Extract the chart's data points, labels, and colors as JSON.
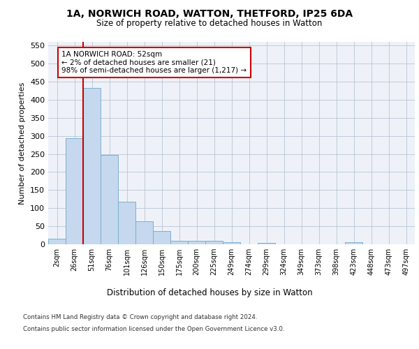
{
  "title_line1": "1A, NORWICH ROAD, WATTON, THETFORD, IP25 6DA",
  "title_line2": "Size of property relative to detached houses in Watton",
  "xlabel": "Distribution of detached houses by size in Watton",
  "ylabel": "Number of detached properties",
  "categories": [
    "2sqm",
    "26sqm",
    "51sqm",
    "76sqm",
    "101sqm",
    "126sqm",
    "150sqm",
    "175sqm",
    "200sqm",
    "225sqm",
    "249sqm",
    "274sqm",
    "299sqm",
    "324sqm",
    "349sqm",
    "373sqm",
    "398sqm",
    "423sqm",
    "448sqm",
    "473sqm",
    "497sqm"
  ],
  "values": [
    15,
    293,
    432,
    247,
    118,
    64,
    36,
    9,
    10,
    10,
    5,
    0,
    4,
    0,
    0,
    0,
    0,
    5,
    0,
    0,
    0
  ],
  "bar_color": "#c5d8ed",
  "bar_edge_color": "#7bafd4",
  "vline_x_index": 1,
  "vline_color": "#cc0000",
  "annotation_text": "1A NORWICH ROAD: 52sqm\n← 2% of detached houses are smaller (21)\n98% of semi-detached houses are larger (1,217) →",
  "annotation_box_color": "#ffffff",
  "annotation_box_edge_color": "#cc0000",
  "ylim": [
    0,
    560
  ],
  "yticks": [
    0,
    50,
    100,
    150,
    200,
    250,
    300,
    350,
    400,
    450,
    500,
    550
  ],
  "footer_line1": "Contains HM Land Registry data © Crown copyright and database right 2024.",
  "footer_line2": "Contains public sector information licensed under the Open Government Licence v3.0.",
  "plot_bg_color": "#eef2f8"
}
